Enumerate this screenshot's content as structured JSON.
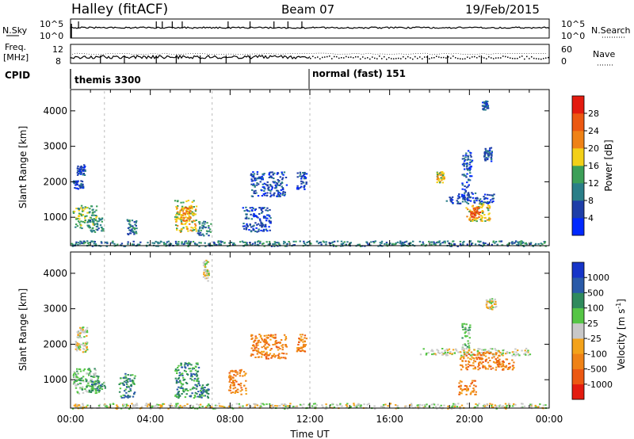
{
  "header": {
    "title": "Halley (fitACF)",
    "beam": "Beam 07",
    "date": "19/Feb/2015"
  },
  "strip": {
    "nsky": {
      "label": "N.Sky",
      "ticks": [
        "10^5",
        "10^0"
      ]
    },
    "nsearch": {
      "label": "N.Search",
      "ticks": [
        "10^5",
        "10^0"
      ]
    },
    "freq": {
      "label_1": "Freq.",
      "label_2": "[MHz]",
      "ticks": [
        "12",
        "8"
      ]
    },
    "nave": {
      "label": "Nave",
      "ticks": [
        "60",
        "0"
      ]
    },
    "cpid": {
      "label": "CPID",
      "modes": [
        "themis 3300",
        "normal (fast) 151"
      ]
    }
  },
  "chart_data": [
    {
      "type": "heatmap",
      "title": "",
      "quantity": "Power",
      "colorbar_label": "Power [dB]",
      "ylabel": "Slant Range [km]",
      "xlabel": "",
      "x_unit": "hours UT",
      "xlim": [
        0,
        24
      ],
      "ylim": [
        200,
        4600
      ],
      "ytick_labels": [
        "1000",
        "2000",
        "3000",
        "4000"
      ],
      "colorbar_ticks": [
        "4",
        "8",
        "12",
        "16",
        "20",
        "24",
        "28"
      ],
      "colorbar_range": [
        0,
        32
      ],
      "colors": [
        "#0028ff",
        "#1e3ea8",
        "#2a7e88",
        "#3c9f58",
        "#f3d018",
        "#ef8216",
        "#ec5812",
        "#e31b0f"
      ],
      "regions": [
        {
          "x": [
            0.1,
            1.3
          ],
          "y": [
            700,
            1350
          ],
          "level": 3
        },
        {
          "x": [
            0.1,
            0.6
          ],
          "y": [
            1800,
            2050
          ],
          "level": 1
        },
        {
          "x": [
            0.3,
            0.7
          ],
          "y": [
            2200,
            2500
          ],
          "level": 1
        },
        {
          "x": [
            0.8,
            1.6
          ],
          "y": [
            600,
            1000
          ],
          "level": 2
        },
        {
          "x": [
            2.8,
            3.3
          ],
          "y": [
            500,
            950
          ],
          "level": 2
        },
        {
          "x": [
            5.2,
            6.3
          ],
          "y": [
            600,
            1500
          ],
          "level": 4
        },
        {
          "x": [
            5.5,
            6.0
          ],
          "y": [
            900,
            1300
          ],
          "level": 5
        },
        {
          "x": [
            6.3,
            7.0
          ],
          "y": [
            500,
            900
          ],
          "level": 2
        },
        {
          "x": [
            8.6,
            10.0
          ],
          "y": [
            600,
            1300
          ],
          "level": 1
        },
        {
          "x": [
            9.0,
            10.8
          ],
          "y": [
            1600,
            2300
          ],
          "level": 1
        },
        {
          "x": [
            11.3,
            11.8
          ],
          "y": [
            1800,
            2300
          ],
          "level": 1
        },
        {
          "x": [
            18.8,
            21.2
          ],
          "y": [
            1400,
            1700
          ],
          "level": 1
        },
        {
          "x": [
            19.8,
            21.0
          ],
          "y": [
            900,
            1400
          ],
          "level": 4
        },
        {
          "x": [
            20.0,
            20.5
          ],
          "y": [
            1000,
            1300
          ],
          "level": 6
        },
        {
          "x": [
            19.6,
            20.1
          ],
          "y": [
            1500,
            2900
          ],
          "level": 1
        },
        {
          "x": [
            20.7,
            21.1
          ],
          "y": [
            2600,
            3000
          ],
          "level": 1
        },
        {
          "x": [
            18.3,
            18.7
          ],
          "y": [
            2000,
            2300
          ],
          "level": 4
        },
        {
          "x": [
            20.6,
            20.9
          ],
          "y": [
            4050,
            4300
          ],
          "level": 1
        },
        {
          "x": [
            0.0,
            23.8
          ],
          "y": [
            200,
            350
          ],
          "level": 2
        }
      ]
    },
    {
      "type": "heatmap",
      "title": "",
      "quantity": "Velocity",
      "colorbar_label": "Velocity [m s",
      "colorbar_label_sup": "-1",
      "colorbar_label_end": "]",
      "ylabel": "Slant Range [km]",
      "xlabel": "Time UT",
      "x_unit": "hours UT",
      "xlim": [
        0,
        24
      ],
      "ylim": [
        200,
        4600
      ],
      "xtick_labels": [
        "00:00",
        "04:00",
        "08:00",
        "12:00",
        "16:00",
        "20:00",
        "00:00"
      ],
      "ytick_labels": [
        "1000",
        "2000",
        "3000",
        "4000"
      ],
      "colorbar_ticks": [
        "-1000",
        "-500",
        "-100",
        "-25",
        "25",
        "100",
        "500",
        "1000"
      ],
      "colors": [
        "#e31b0f",
        "#ec5812",
        "#ef8216",
        "#f3a21a",
        "#c8c8c8",
        "#55c545",
        "#2f8a5c",
        "#2a5aa8",
        "#1634c8"
      ],
      "regions": [
        {
          "x": [
            0.1,
            1.4
          ],
          "y": [
            600,
            1350
          ],
          "level": 5
        },
        {
          "x": [
            0.2,
            0.8
          ],
          "y": [
            1800,
            2100
          ],
          "level": 4
        },
        {
          "x": [
            0.3,
            0.8
          ],
          "y": [
            2200,
            2500
          ],
          "level": 4
        },
        {
          "x": [
            1.0,
            1.7
          ],
          "y": [
            700,
            1000
          ],
          "level": 6
        },
        {
          "x": [
            2.4,
            3.2
          ],
          "y": [
            500,
            1200
          ],
          "level": 6
        },
        {
          "x": [
            5.2,
            6.4
          ],
          "y": [
            500,
            1500
          ],
          "level": 6
        },
        {
          "x": [
            6.4,
            6.9
          ],
          "y": [
            500,
            900
          ],
          "level": 6
        },
        {
          "x": [
            6.6,
            6.9
          ],
          "y": [
            3800,
            4400
          ],
          "level": 4
        },
        {
          "x": [
            7.9,
            8.8
          ],
          "y": [
            600,
            1300
          ],
          "level": 2
        },
        {
          "x": [
            9.0,
            10.8
          ],
          "y": [
            1600,
            2300
          ],
          "level": 2
        },
        {
          "x": [
            11.3,
            11.8
          ],
          "y": [
            1800,
            2300
          ],
          "level": 2
        },
        {
          "x": [
            17.5,
            23.0
          ],
          "y": [
            1700,
            1900
          ],
          "level": 4
        },
        {
          "x": [
            19.5,
            21.5
          ],
          "y": [
            1300,
            1800
          ],
          "level": 2
        },
        {
          "x": [
            19.4,
            20.3
          ],
          "y": [
            600,
            1000
          ],
          "level": 2
        },
        {
          "x": [
            19.6,
            20.0
          ],
          "y": [
            1900,
            2600
          ],
          "level": 5
        },
        {
          "x": [
            20.8,
            21.3
          ],
          "y": [
            3000,
            3300
          ],
          "level": 4
        },
        {
          "x": [
            21.3,
            22.2
          ],
          "y": [
            1300,
            1600
          ],
          "level": 2
        },
        {
          "x": [
            0.0,
            23.8
          ],
          "y": [
            200,
            350
          ],
          "level": 4
        }
      ]
    }
  ]
}
